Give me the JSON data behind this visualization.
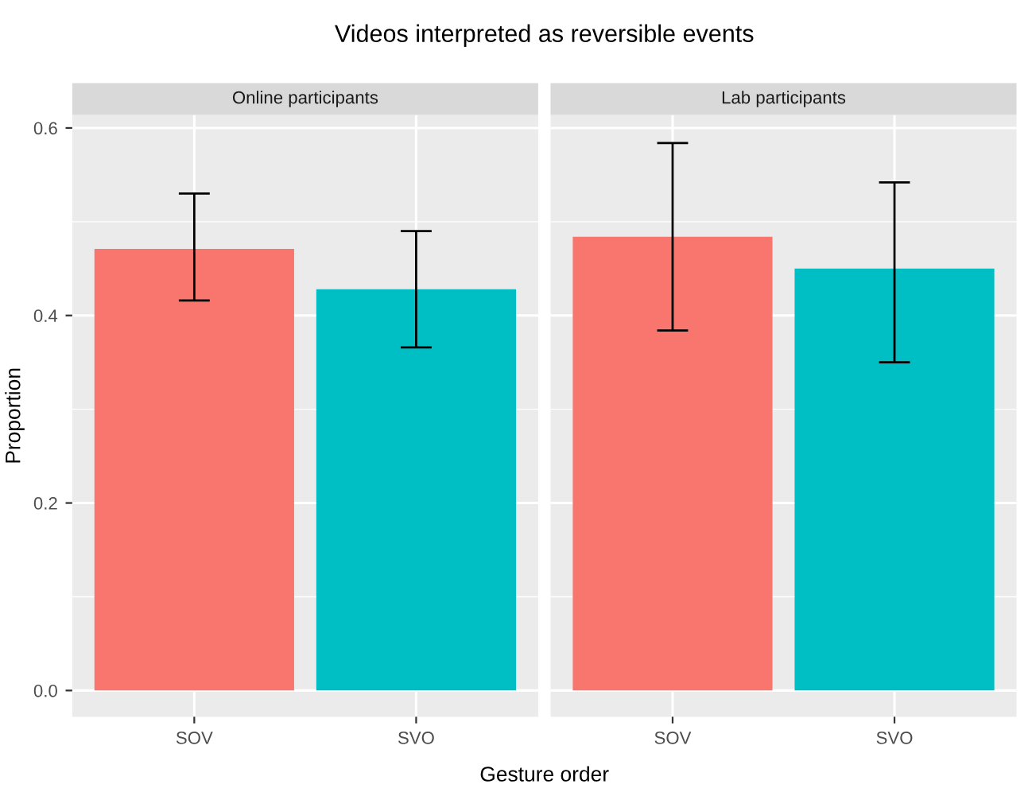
{
  "chart_data": [
    {
      "type": "bar",
      "title": "Videos interpreted as reversible events",
      "subtitle": "Online participants",
      "xlabel": "Gesture order",
      "ylabel": "Proportion",
      "categories": [
        "SOV",
        "SVO"
      ],
      "values": [
        0.471,
        0.428
      ],
      "colors": [
        "#f8766d",
        "#00bfc4"
      ],
      "errors": [
        [
          0.416,
          0.53
        ],
        [
          0.366,
          0.49
        ]
      ],
      "ylim": [
        -0.028,
        0.614
      ],
      "yticks": [
        {
          "value": 0,
          "label": "0.0"
        },
        {
          "value": 0.2,
          "label": "0.2"
        },
        {
          "value": 0.4,
          "label": "0.4"
        },
        {
          "value": 0.6,
          "label": "0.6"
        }
      ],
      "grid": true
    },
    {
      "type": "bar",
      "subtitle": "Lab participants",
      "categories": [
        "SOV",
        "SVO"
      ],
      "values": [
        0.484,
        0.45
      ],
      "colors": [
        "#f8766d",
        "#00bfc4"
      ],
      "errors": [
        [
          0.384,
          0.584
        ],
        [
          0.35,
          0.542
        ]
      ],
      "ylim": [
        -0.028,
        0.614
      ],
      "yticks": [
        {
          "value": 0,
          "label": null
        },
        {
          "value": 0.2,
          "label": null
        },
        {
          "value": 0.4,
          "label": null
        },
        {
          "value": 0.6,
          "label": null
        }
      ],
      "grid": true,
      "tick_labels": "x"
    }
  ]
}
